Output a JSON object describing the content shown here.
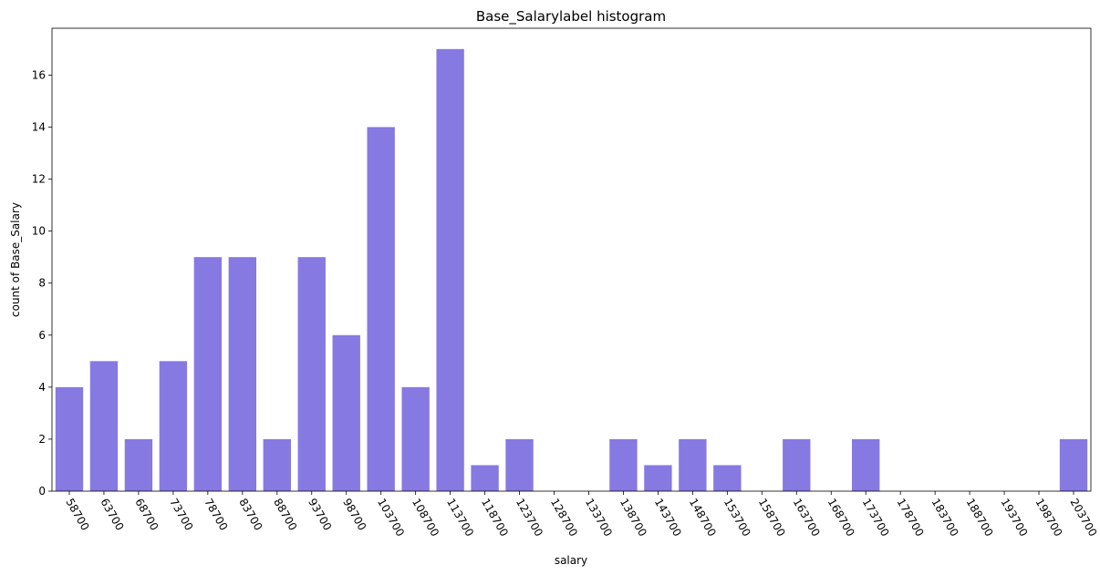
{
  "chart_data": {
    "type": "bar",
    "title": "Base_Salarylabel histogram",
    "xlabel": "salary",
    "ylabel": "count of Base_Salary",
    "ylim": [
      0,
      17.8
    ],
    "yticks": [
      0,
      2,
      4,
      6,
      8,
      10,
      12,
      14,
      16
    ],
    "bar_color": "#8779e2",
    "grid": false,
    "categories": [
      "58700",
      "63700",
      "68700",
      "73700",
      "78700",
      "83700",
      "88700",
      "93700",
      "98700",
      "103700",
      "108700",
      "113700",
      "118700",
      "123700",
      "128700",
      "133700",
      "138700",
      "143700",
      "148700",
      "153700",
      "158700",
      "163700",
      "168700",
      "173700",
      "178700",
      "183700",
      "188700",
      "193700",
      "198700",
      "203700"
    ],
    "values": [
      4,
      5,
      2,
      5,
      9,
      9,
      2,
      9,
      6,
      14,
      4,
      17,
      1,
      2,
      0,
      0,
      2,
      1,
      2,
      1,
      0,
      2,
      0,
      2,
      0,
      0,
      0,
      0,
      0,
      2
    ]
  }
}
